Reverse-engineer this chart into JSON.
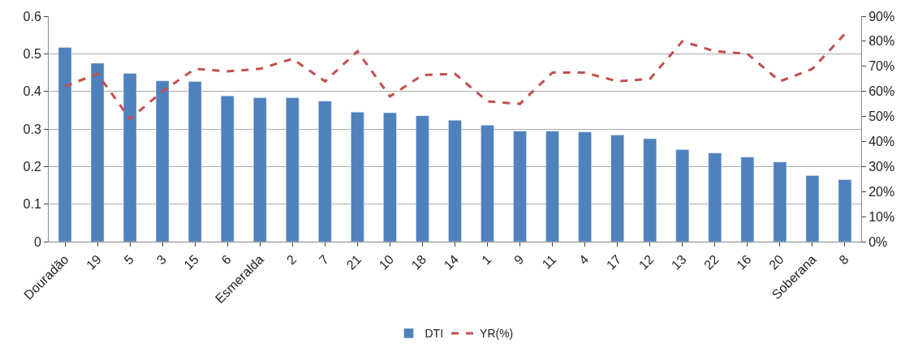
{
  "chart_data": {
    "type": "bar",
    "categories": [
      "Douradão",
      "19",
      "5",
      "3",
      "15",
      "6",
      "Esmeralda",
      "2",
      "7",
      "21",
      "10",
      "18",
      "14",
      "1",
      "9",
      "11",
      "4",
      "17",
      "12",
      "13",
      "22",
      "16",
      "20",
      "Soberana",
      "8"
    ],
    "series": [
      {
        "name": "DTI",
        "color": "#4f81bd",
        "values": [
          0.517,
          0.475,
          0.448,
          0.428,
          0.426,
          0.388,
          0.383,
          0.383,
          0.374,
          0.345,
          0.343,
          0.335,
          0.323,
          0.31,
          0.294,
          0.294,
          0.292,
          0.284,
          0.274,
          0.245,
          0.236,
          0.225,
          0.212,
          0.176,
          0.165
        ]
      },
      {
        "name": "YR(%)",
        "type": "line",
        "axis": "y2",
        "color": "#c0504d",
        "line_style": "dashed",
        "values": [
          62,
          67,
          49,
          60,
          69,
          68,
          69,
          73,
          64,
          76,
          58,
          66.5,
          67,
          56,
          55,
          67.5,
          67.5,
          64,
          65,
          80,
          76,
          75,
          64,
          69,
          83
        ]
      }
    ],
    "ylim": [
      0,
      0.6
    ],
    "yticks": [
      0,
      0.1,
      0.2,
      0.3,
      0.4,
      0.5,
      0.6
    ],
    "y2lim": [
      0,
      90
    ],
    "y2ticks": [
      {
        "value": 0,
        "label": "0%"
      },
      {
        "value": 10,
        "label": "10%"
      },
      {
        "value": 20,
        "label": "20%"
      },
      {
        "value": 30,
        "label": "30%"
      },
      {
        "value": 40,
        "label": "40%"
      },
      {
        "value": 50,
        "label": "50%"
      },
      {
        "value": 60,
        "label": "60%"
      },
      {
        "value": 70,
        "label": "70%"
      },
      {
        "value": 80,
        "label": "80%"
      },
      {
        "value": 90,
        "label": "90%"
      }
    ],
    "grid": "y",
    "legend": "bottom"
  }
}
